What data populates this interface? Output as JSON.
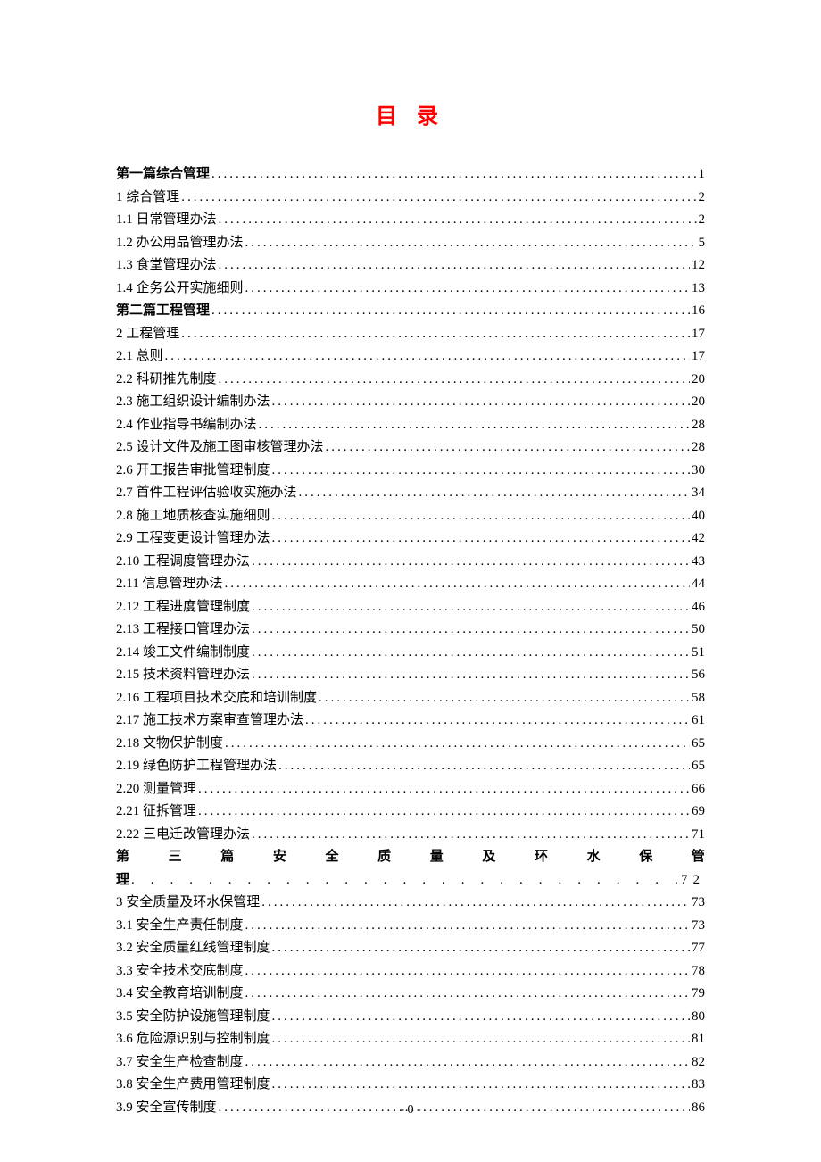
{
  "title": "目 录",
  "page_footer": "- 0 -",
  "justified_heading": [
    "第",
    "三",
    "篇",
    "安",
    "全",
    "质",
    "量",
    "及",
    "环",
    "水",
    "保",
    "管"
  ],
  "justified_line2_label": "理",
  "justified_line2_page": "72",
  "entries": [
    {
      "label": "第一篇综合管理",
      "page": "1",
      "bold": true
    },
    {
      "label": "1 综合管理",
      "page": "2",
      "bold": false
    },
    {
      "label": "1.1 日常管理办法",
      "page": "2",
      "bold": false
    },
    {
      "label": "1.2 办公用品管理办法",
      "page": "5",
      "bold": false
    },
    {
      "label": "1.3 食堂管理办法",
      "page": "12",
      "bold": false
    },
    {
      "label": "1.4 企务公开实施细则",
      "page": "13",
      "bold": false
    },
    {
      "label": "第二篇工程管理",
      "page": "16",
      "bold": true
    },
    {
      "label": "2 工程管理",
      "page": "17",
      "bold": false
    },
    {
      "label": "2.1 总则",
      "page": "17",
      "bold": false
    },
    {
      "label": "2.2 科研推先制度",
      "page": "20",
      "bold": false
    },
    {
      "label": "2.3 施工组织设计编制办法",
      "page": "20",
      "bold": false
    },
    {
      "label": "2.4 作业指导书编制办法",
      "page": "28",
      "bold": false
    },
    {
      "label": "2.5 设计文件及施工图审核管理办法",
      "page": "28",
      "bold": false
    },
    {
      "label": "2.6 开工报告审批管理制度",
      "page": "30",
      "bold": false
    },
    {
      "label": "2.7 首件工程评估验收实施办法",
      "page": "34",
      "bold": false
    },
    {
      "label": "2.8 施工地质核查实施细则",
      "page": "40",
      "bold": false
    },
    {
      "label": "2.9 工程变更设计管理办法",
      "page": "42",
      "bold": false
    },
    {
      "label": "2.10  工程调度管理办法",
      "page": "43",
      "bold": false
    },
    {
      "label": "2.11  信息管理办法",
      "page": "44",
      "bold": false
    },
    {
      "label": "2.12  工程进度管理制度",
      "page": "46",
      "bold": false
    },
    {
      "label": "2.13  工程接口管理办法",
      "page": "50",
      "bold": false
    },
    {
      "label": "2.14 竣工文件编制制度",
      "page": " 51",
      "bold": false
    },
    {
      "label": "2.15  技术资料管理办法",
      "page": "56",
      "bold": false
    },
    {
      "label": "2.16 工程项目技术交底和培训制度",
      "page": "58",
      "bold": false
    },
    {
      "label": "2.17 施工技术方案审查管理办法",
      "page": "61",
      "bold": false
    },
    {
      "label": "2.18 文物保护制度",
      "page": "65",
      "bold": false
    },
    {
      "label": "2.19 绿色防护工程管理办法",
      "page": "65",
      "bold": false
    },
    {
      "label": "2.20 测量管理",
      "page": "66",
      "bold": false
    },
    {
      "label": "2.21 征拆管理",
      "page": "69",
      "bold": false
    },
    {
      "label": "2.22 三电迁改管理办法",
      "page": "71",
      "bold": false
    }
  ],
  "entries2": [
    {
      "label": "3 安全质量及环水保管理",
      "page": "73",
      "bold": false
    },
    {
      "label": "3.1 安全生产责任制度",
      "page": "73",
      "bold": false
    },
    {
      "label": "3.2 安全质量红线管理制度",
      "page": "77",
      "bold": false
    },
    {
      "label": "3.3 安全技术交底制度",
      "page": "78",
      "bold": false
    },
    {
      "label": "3.4 安全教育培训制度",
      "page": "79",
      "bold": false
    },
    {
      "label": "3.5 安全防护设施管理制度",
      "page": "80",
      "bold": false
    },
    {
      "label": "3.6 危险源识别与控制制度",
      "page": "81",
      "bold": false
    },
    {
      "label": "3.7 安全生产检查制度",
      "page": "82",
      "bold": false
    },
    {
      "label": "3.8 安全生产费用管理制度",
      "page": "83",
      "bold": false
    },
    {
      "label": "3.9 安全宣传制度",
      "page": "86",
      "bold": false
    }
  ]
}
